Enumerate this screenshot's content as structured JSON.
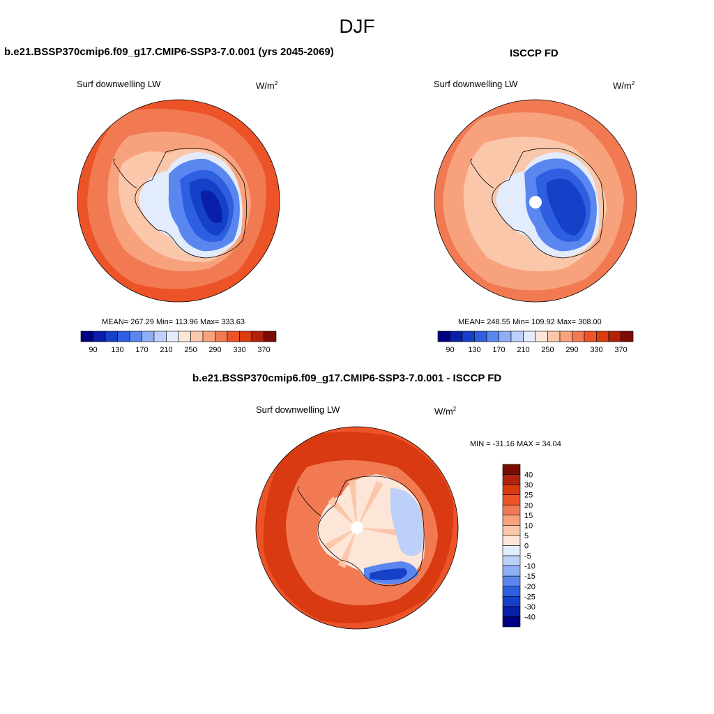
{
  "figure_title": "DJF",
  "panels": [
    {
      "id": "model",
      "title": "b.e21.BSSP370cmip6.f09_g17.CMIP6-SSP3-7.0.001 (yrs 2045-2069)",
      "variable": "Surf downwelling LW",
      "units": "W/m",
      "units_sup": "2",
      "stats_text": "MEAN= 267.29  Min= 113.96  Max= 333.63",
      "mean": 267.29,
      "min": 113.96,
      "max": 333.63
    },
    {
      "id": "obs",
      "title": "ISCCP FD",
      "variable": "Surf downwelling LW",
      "units": "W/m",
      "units_sup": "2",
      "stats_text": "MEAN= 248.55  Min= 109.92  Max= 308.00",
      "mean": 248.55,
      "min": 109.92,
      "max": 308.0
    },
    {
      "id": "diff",
      "title": "b.e21.BSSP370cmip6.f09_g17.CMIP6-SSP3-7.0.001 - ISCCP FD",
      "variable": "Surf downwelling LW",
      "units": "W/m",
      "units_sup": "2",
      "stats_text": "MIN = -31.16 MAX =  34.04",
      "min": -31.16,
      "max": 34.04
    }
  ],
  "colorbar_abs": {
    "tick_labels": [
      "90",
      "130",
      "170",
      "210",
      "250",
      "290",
      "330",
      "370"
    ],
    "colors": [
      "#000080",
      "#0a1fa8",
      "#1540c8",
      "#2e5fe0",
      "#5a86ef",
      "#8eaef5",
      "#bcd0fa",
      "#e2ecfc",
      "#fde6d8",
      "#fbc7aa",
      "#f7a27c",
      "#f27a52",
      "#ec5428",
      "#d93a12",
      "#b0220a",
      "#7a0c04"
    ]
  },
  "colorbar_diff": {
    "levels": [
      "40",
      "30",
      "25",
      "20",
      "15",
      "10",
      "5",
      "0",
      "-5",
      "-10",
      "-15",
      "-20",
      "-25",
      "-30",
      "-40"
    ],
    "colors": [
      "#7a0c04",
      "#b0220a",
      "#d93a12",
      "#ec5428",
      "#f27a52",
      "#f7a27c",
      "#fbc7aa",
      "#fde6d8",
      "#e2ecfc",
      "#bcd0fa",
      "#8eaef5",
      "#5a86ef",
      "#2e5fe0",
      "#1540c8",
      "#0a1fa8",
      "#000080"
    ]
  },
  "map_colors": {
    "outer_abs": "#ec5428",
    "ring_abs": "#f27a52",
    "inner_abs": "#f7a27c",
    "coast_abs": "#fbc7aa",
    "edge_abs": "#e2ecfc",
    "ice1": "#5a86ef",
    "ice2": "#2e5fe0",
    "ice3": "#1540c8",
    "ice4": "#0a1fa8",
    "diff_outer": "#d93a12",
    "diff_mid": "#ec5428",
    "diff_inner": "#f27a52",
    "diff_ant": "#fde6d8",
    "diff_spoke": "#fbc7aa",
    "diff_blue1": "#bcd0fa",
    "diff_blue2": "#5a86ef",
    "diff_blue3": "#1540c8"
  },
  "chart_data": {
    "type": "heatmap",
    "projection": "south polar stereographic",
    "season": "DJF",
    "variable": "Surf downwelling LW",
    "units": "W/m2",
    "maps": [
      {
        "name": "model",
        "mean": 267.29,
        "min": 113.96,
        "max": 333.63
      },
      {
        "name": "ISCCP FD",
        "mean": 248.55,
        "min": 109.92,
        "max": 308.0
      },
      {
        "name": "model - ISCCP FD",
        "min": -31.16,
        "max": 34.04
      }
    ]
  }
}
